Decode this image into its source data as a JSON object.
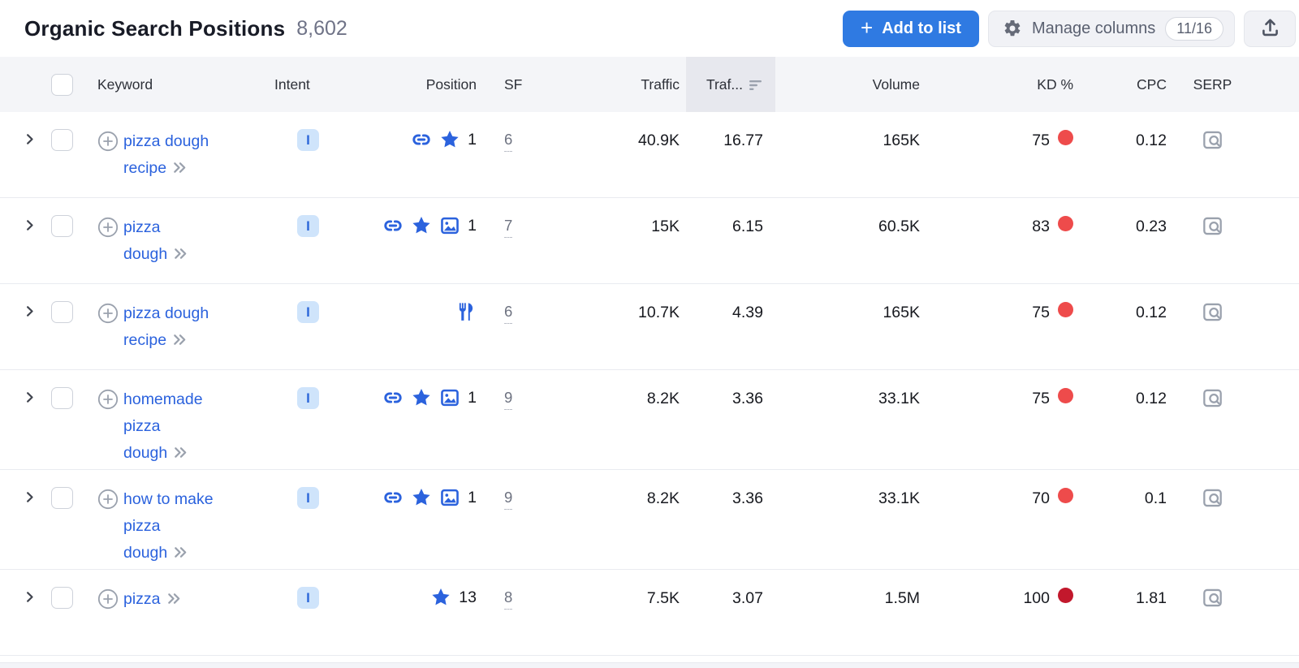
{
  "header": {
    "title": "Organic Search Positions",
    "count": "8,602",
    "add_to_list_label": "Add to list",
    "add_to_list_plus": "+",
    "manage_columns_label": "Manage columns",
    "columns_count": "11/16"
  },
  "icons": {
    "topbar": [
      "plus-icon",
      "gear-icon",
      "upload-icon"
    ],
    "table": [
      "sort-descending-icon",
      "expand-row-chevron-icon",
      "add-keyword-circle-icon",
      "double-chevron-icon",
      "serp-preview-icon"
    ],
    "position_features": [
      "link-icon",
      "star-icon",
      "image-icon",
      "restaurant-icon"
    ]
  },
  "colors": {
    "accent_blue": "#2f7ae2",
    "link_blue": "#2b62dd",
    "intent_badge_bg": "#cfe4fb",
    "intent_badge_text": "#2e68d9",
    "kd_hard": "#ee4b4b",
    "kd_very_hard": "#c2182c",
    "header_bg": "#f4f5f8",
    "sorted_header_bg": "#e7e8ee"
  },
  "table": {
    "columns": {
      "keyword": "Keyword",
      "intent": "Intent",
      "position": "Position",
      "sf": "SF",
      "traffic": "Traffic",
      "traffic_pct": "Traf...",
      "volume": "Volume",
      "kd": "KD %",
      "cpc": "CPC",
      "serp": "SERP"
    },
    "rows": [
      {
        "keyword": "pizza dough recipe",
        "keyword_lines": [
          "pizza dough",
          "recipe"
        ],
        "intent": "I",
        "features": [
          "link",
          "star"
        ],
        "position": "1",
        "sf": "6",
        "traffic": "40.9K",
        "traffic_pct": "16.77",
        "volume": "165K",
        "kd": "75",
        "kd_color": "#ee4b4b",
        "cpc": "0.12"
      },
      {
        "keyword": "pizza dough",
        "keyword_lines": [
          "pizza",
          "dough"
        ],
        "intent": "I",
        "features": [
          "link",
          "star",
          "image"
        ],
        "position": "1",
        "sf": "7",
        "traffic": "15K",
        "traffic_pct": "6.15",
        "volume": "60.5K",
        "kd": "83",
        "kd_color": "#ee4b4b",
        "cpc": "0.23"
      },
      {
        "keyword": "pizza dough recipe",
        "keyword_lines": [
          "pizza dough",
          "recipe"
        ],
        "intent": "I",
        "features": [
          "restaurant"
        ],
        "position": "",
        "sf": "6",
        "traffic": "10.7K",
        "traffic_pct": "4.39",
        "volume": "165K",
        "kd": "75",
        "kd_color": "#ee4b4b",
        "cpc": "0.12"
      },
      {
        "keyword": "homemade pizza dough",
        "keyword_lines": [
          "homemade",
          "pizza",
          "dough"
        ],
        "intent": "I",
        "features": [
          "link",
          "star",
          "image"
        ],
        "position": "1",
        "sf": "9",
        "traffic": "8.2K",
        "traffic_pct": "3.36",
        "volume": "33.1K",
        "kd": "75",
        "kd_color": "#ee4b4b",
        "cpc": "0.12"
      },
      {
        "keyword": "how to make pizza dough",
        "keyword_lines": [
          "how to make",
          "pizza",
          "dough"
        ],
        "intent": "I",
        "features": [
          "link",
          "star",
          "image"
        ],
        "position": "1",
        "sf": "9",
        "traffic": "8.2K",
        "traffic_pct": "3.36",
        "volume": "33.1K",
        "kd": "70",
        "kd_color": "#ee4b4b",
        "cpc": "0.1"
      },
      {
        "keyword": "pizza",
        "keyword_lines": [
          "pizza"
        ],
        "intent": "I",
        "features": [
          "star"
        ],
        "position": "13",
        "sf": "8",
        "traffic": "7.5K",
        "traffic_pct": "3.07",
        "volume": "1.5M",
        "kd": "100",
        "kd_color": "#c2182c",
        "cpc": "1.81"
      }
    ]
  }
}
